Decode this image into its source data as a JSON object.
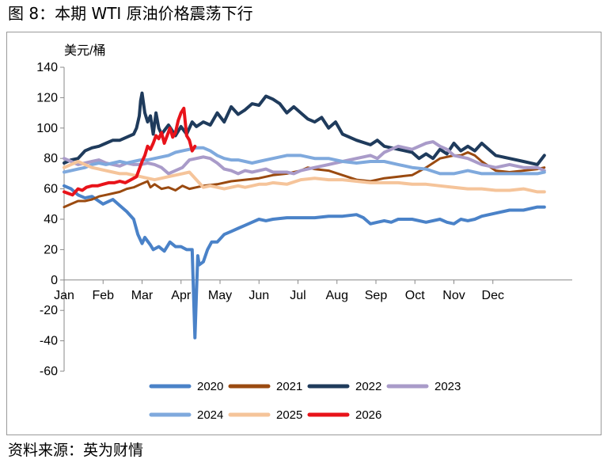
{
  "figure_title": "图 8：本期 WTI 原油价格震荡下行",
  "source_note": "资料来源：英为财情",
  "chart_data": {
    "type": "line",
    "title": "",
    "xlabel": "",
    "ylabel": "美元/桶",
    "ylim": [
      -60,
      140
    ],
    "yticks": [
      140,
      120,
      100,
      80,
      60,
      40,
      20,
      0,
      -20,
      -40,
      -60
    ],
    "xlim": [
      0,
      365
    ],
    "x_unit": "day of year",
    "x_tick_labels": [
      "Jan",
      "Feb",
      "Mar",
      "Apr",
      "May",
      "Jun",
      "Jul",
      "Aug",
      "Sep",
      "Oct",
      "Nov",
      "Dec"
    ],
    "x_tick_positions": [
      0,
      28,
      56,
      84,
      112,
      140,
      168,
      196,
      224,
      252,
      280,
      308
    ],
    "grid": false,
    "legend_placement": "bottom",
    "series": [
      {
        "name": "2020",
        "color": "#4a82c8",
        "width": 4,
        "x": [
          0,
          5,
          10,
          15,
          20,
          28,
          35,
          40,
          45,
          50,
          53,
          56,
          58,
          62,
          64,
          68,
          72,
          76,
          80,
          84,
          88,
          92,
          93,
          94,
          95,
          96,
          97,
          100,
          103,
          106,
          110,
          115,
          120,
          125,
          130,
          135,
          140,
          145,
          150,
          160,
          170,
          180,
          190,
          200,
          210,
          215,
          220,
          225,
          230,
          235,
          240,
          250,
          260,
          270,
          275,
          280,
          285,
          290,
          295,
          300,
          310,
          320,
          330,
          340,
          345
        ],
        "y": [
          62,
          60,
          56,
          54,
          55,
          50,
          53,
          49,
          45,
          40,
          30,
          24,
          28,
          23,
          20,
          22,
          19,
          25,
          22,
          22,
          20,
          20,
          -10,
          -38,
          -10,
          16,
          10,
          12,
          20,
          25,
          25,
          30,
          32,
          34,
          36,
          38,
          40,
          39,
          40,
          41,
          41,
          41,
          42,
          42,
          43,
          41,
          37,
          38,
          39,
          38,
          40,
          40,
          38,
          40,
          38,
          37,
          40,
          39,
          40,
          42,
          44,
          46,
          46,
          48,
          48
        ]
      },
      {
        "name": "2021",
        "color": "#9a4a10",
        "width": 3,
        "x": [
          0,
          5,
          10,
          15,
          20,
          25,
          30,
          35,
          40,
          45,
          50,
          55,
          60,
          62,
          65,
          70,
          75,
          80,
          85,
          90,
          95,
          100,
          110,
          120,
          130,
          140,
          150,
          160,
          170,
          175,
          180,
          190,
          200,
          210,
          220,
          230,
          240,
          250,
          260,
          270,
          280,
          285,
          290,
          295,
          300,
          310,
          320,
          330,
          340,
          345
        ],
        "y": [
          48,
          50,
          52,
          52,
          53,
          55,
          56,
          57,
          58,
          60,
          61,
          63,
          65,
          61,
          63,
          60,
          61,
          59,
          62,
          60,
          61,
          62,
          63,
          65,
          66,
          67,
          69,
          70,
          72,
          74,
          73,
          72,
          69,
          66,
          65,
          67,
          68,
          69,
          74,
          80,
          82,
          82,
          84,
          82,
          78,
          72,
          71,
          72,
          73,
          74
        ]
      },
      {
        "name": "2022",
        "color": "#1f3b5c",
        "width": 4,
        "x": [
          0,
          5,
          10,
          15,
          20,
          25,
          30,
          35,
          40,
          45,
          50,
          52,
          54,
          55,
          56,
          58,
          60,
          62,
          64,
          66,
          68,
          70,
          75,
          80,
          84,
          88,
          92,
          95,
          100,
          105,
          110,
          115,
          120,
          125,
          130,
          135,
          140,
          145,
          150,
          155,
          160,
          165,
          170,
          175,
          180,
          185,
          190,
          195,
          200,
          210,
          220,
          225,
          230,
          240,
          250,
          255,
          260,
          265,
          270,
          275,
          280,
          285,
          290,
          295,
          300,
          305,
          310,
          320,
          330,
          340,
          345
        ],
        "y": [
          77,
          79,
          80,
          85,
          87,
          88,
          90,
          92,
          92,
          94,
          96,
          100,
          108,
          118,
          123,
          110,
          104,
          108,
          96,
          110,
          100,
          96,
          102,
          95,
          101,
          96,
          104,
          101,
          104,
          102,
          110,
          104,
          114,
          109,
          112,
          116,
          115,
          121,
          119,
          116,
          110,
          114,
          110,
          106,
          104,
          107,
          100,
          104,
          96,
          92,
          89,
          92,
          88,
          86,
          84,
          80,
          83,
          80,
          86,
          83,
          90,
          85,
          88,
          85,
          90,
          86,
          82,
          80,
          78,
          76,
          82
        ]
      },
      {
        "name": "2023",
        "color": "#a99bc9",
        "width": 4,
        "x": [
          0,
          5,
          10,
          15,
          20,
          25,
          30,
          35,
          40,
          45,
          50,
          55,
          60,
          65,
          70,
          75,
          80,
          85,
          90,
          95,
          100,
          105,
          110,
          115,
          120,
          125,
          130,
          135,
          140,
          145,
          150,
          155,
          160,
          165,
          170,
          175,
          180,
          190,
          200,
          210,
          220,
          225,
          230,
          235,
          240,
          250,
          260,
          265,
          270,
          275,
          280,
          290,
          300,
          310,
          320,
          330,
          340,
          345
        ],
        "y": [
          80,
          78,
          76,
          77,
          78,
          79,
          77,
          76,
          75,
          77,
          76,
          76,
          77,
          76,
          74,
          70,
          72,
          74,
          79,
          80,
          81,
          80,
          77,
          73,
          72,
          70,
          72,
          71,
          72,
          73,
          71,
          71,
          71,
          70,
          72,
          73,
          74,
          76,
          78,
          80,
          82,
          80,
          84,
          86,
          88,
          86,
          90,
          91,
          88,
          86,
          82,
          80,
          76,
          74,
          76,
          74,
          74,
          72
        ]
      },
      {
        "name": "2024",
        "color": "#7fa9dd",
        "width": 4,
        "x": [
          0,
          5,
          10,
          15,
          20,
          25,
          30,
          35,
          40,
          45,
          50,
          55,
          60,
          65,
          70,
          75,
          80,
          85,
          90,
          95,
          100,
          105,
          110,
          115,
          120,
          125,
          130,
          135,
          140,
          145,
          150,
          160,
          170,
          180,
          190,
          200,
          210,
          220,
          230,
          240,
          250,
          260,
          270,
          280,
          290,
          300,
          310,
          320,
          330,
          340,
          345
        ],
        "y": [
          71,
          72,
          73,
          74,
          76,
          77,
          76,
          77,
          78,
          77,
          78,
          79,
          79,
          80,
          81,
          82,
          84,
          85,
          86,
          87,
          87,
          85,
          82,
          80,
          79,
          79,
          78,
          77,
          78,
          79,
          80,
          82,
          82,
          80,
          80,
          78,
          77,
          78,
          78,
          76,
          74,
          73,
          70,
          70,
          72,
          70,
          70,
          70,
          70,
          70,
          71
        ]
      },
      {
        "name": "2025",
        "color": "#f5c49a",
        "width": 4,
        "x": [
          0,
          5,
          10,
          15,
          20,
          25,
          30,
          35,
          40,
          45,
          50,
          55,
          60,
          65,
          70,
          75,
          80,
          85,
          90,
          95,
          100,
          105,
          110,
          115,
          120,
          125,
          130,
          135,
          140,
          145,
          150,
          160,
          170,
          180,
          190,
          200,
          210,
          220,
          230,
          240,
          250,
          260,
          270,
          280,
          290,
          300,
          310,
          320,
          330,
          340,
          345
        ],
        "y": [
          74,
          76,
          78,
          76,
          74,
          73,
          72,
          71,
          70,
          70,
          69,
          68,
          67,
          66,
          67,
          68,
          69,
          70,
          71,
          66,
          61,
          62,
          61,
          60,
          61,
          62,
          61,
          62,
          63,
          63,
          64,
          63,
          66,
          67,
          66,
          66,
          65,
          64,
          64,
          64,
          63,
          63,
          62,
          61,
          60,
          60,
          59,
          59,
          60,
          58,
          58
        ]
      },
      {
        "name": "2026",
        "color": "#e8131a",
        "width": 4,
        "x": [
          0,
          3,
          6,
          10,
          13,
          16,
          20,
          24,
          28,
          32,
          36,
          40,
          44,
          48,
          52,
          56,
          58,
          60,
          62,
          64,
          66,
          68,
          70,
          72,
          74,
          76,
          78,
          80,
          82,
          84,
          86,
          88,
          90,
          92,
          94
        ],
        "y": [
          58,
          57,
          56,
          60,
          59,
          61,
          62,
          62,
          63,
          64,
          64,
          65,
          64,
          66,
          68,
          78,
          82,
          88,
          86,
          90,
          95,
          93,
          97,
          90,
          95,
          100,
          94,
          97,
          105,
          110,
          113,
          95,
          92,
          85,
          88
        ]
      }
    ]
  }
}
